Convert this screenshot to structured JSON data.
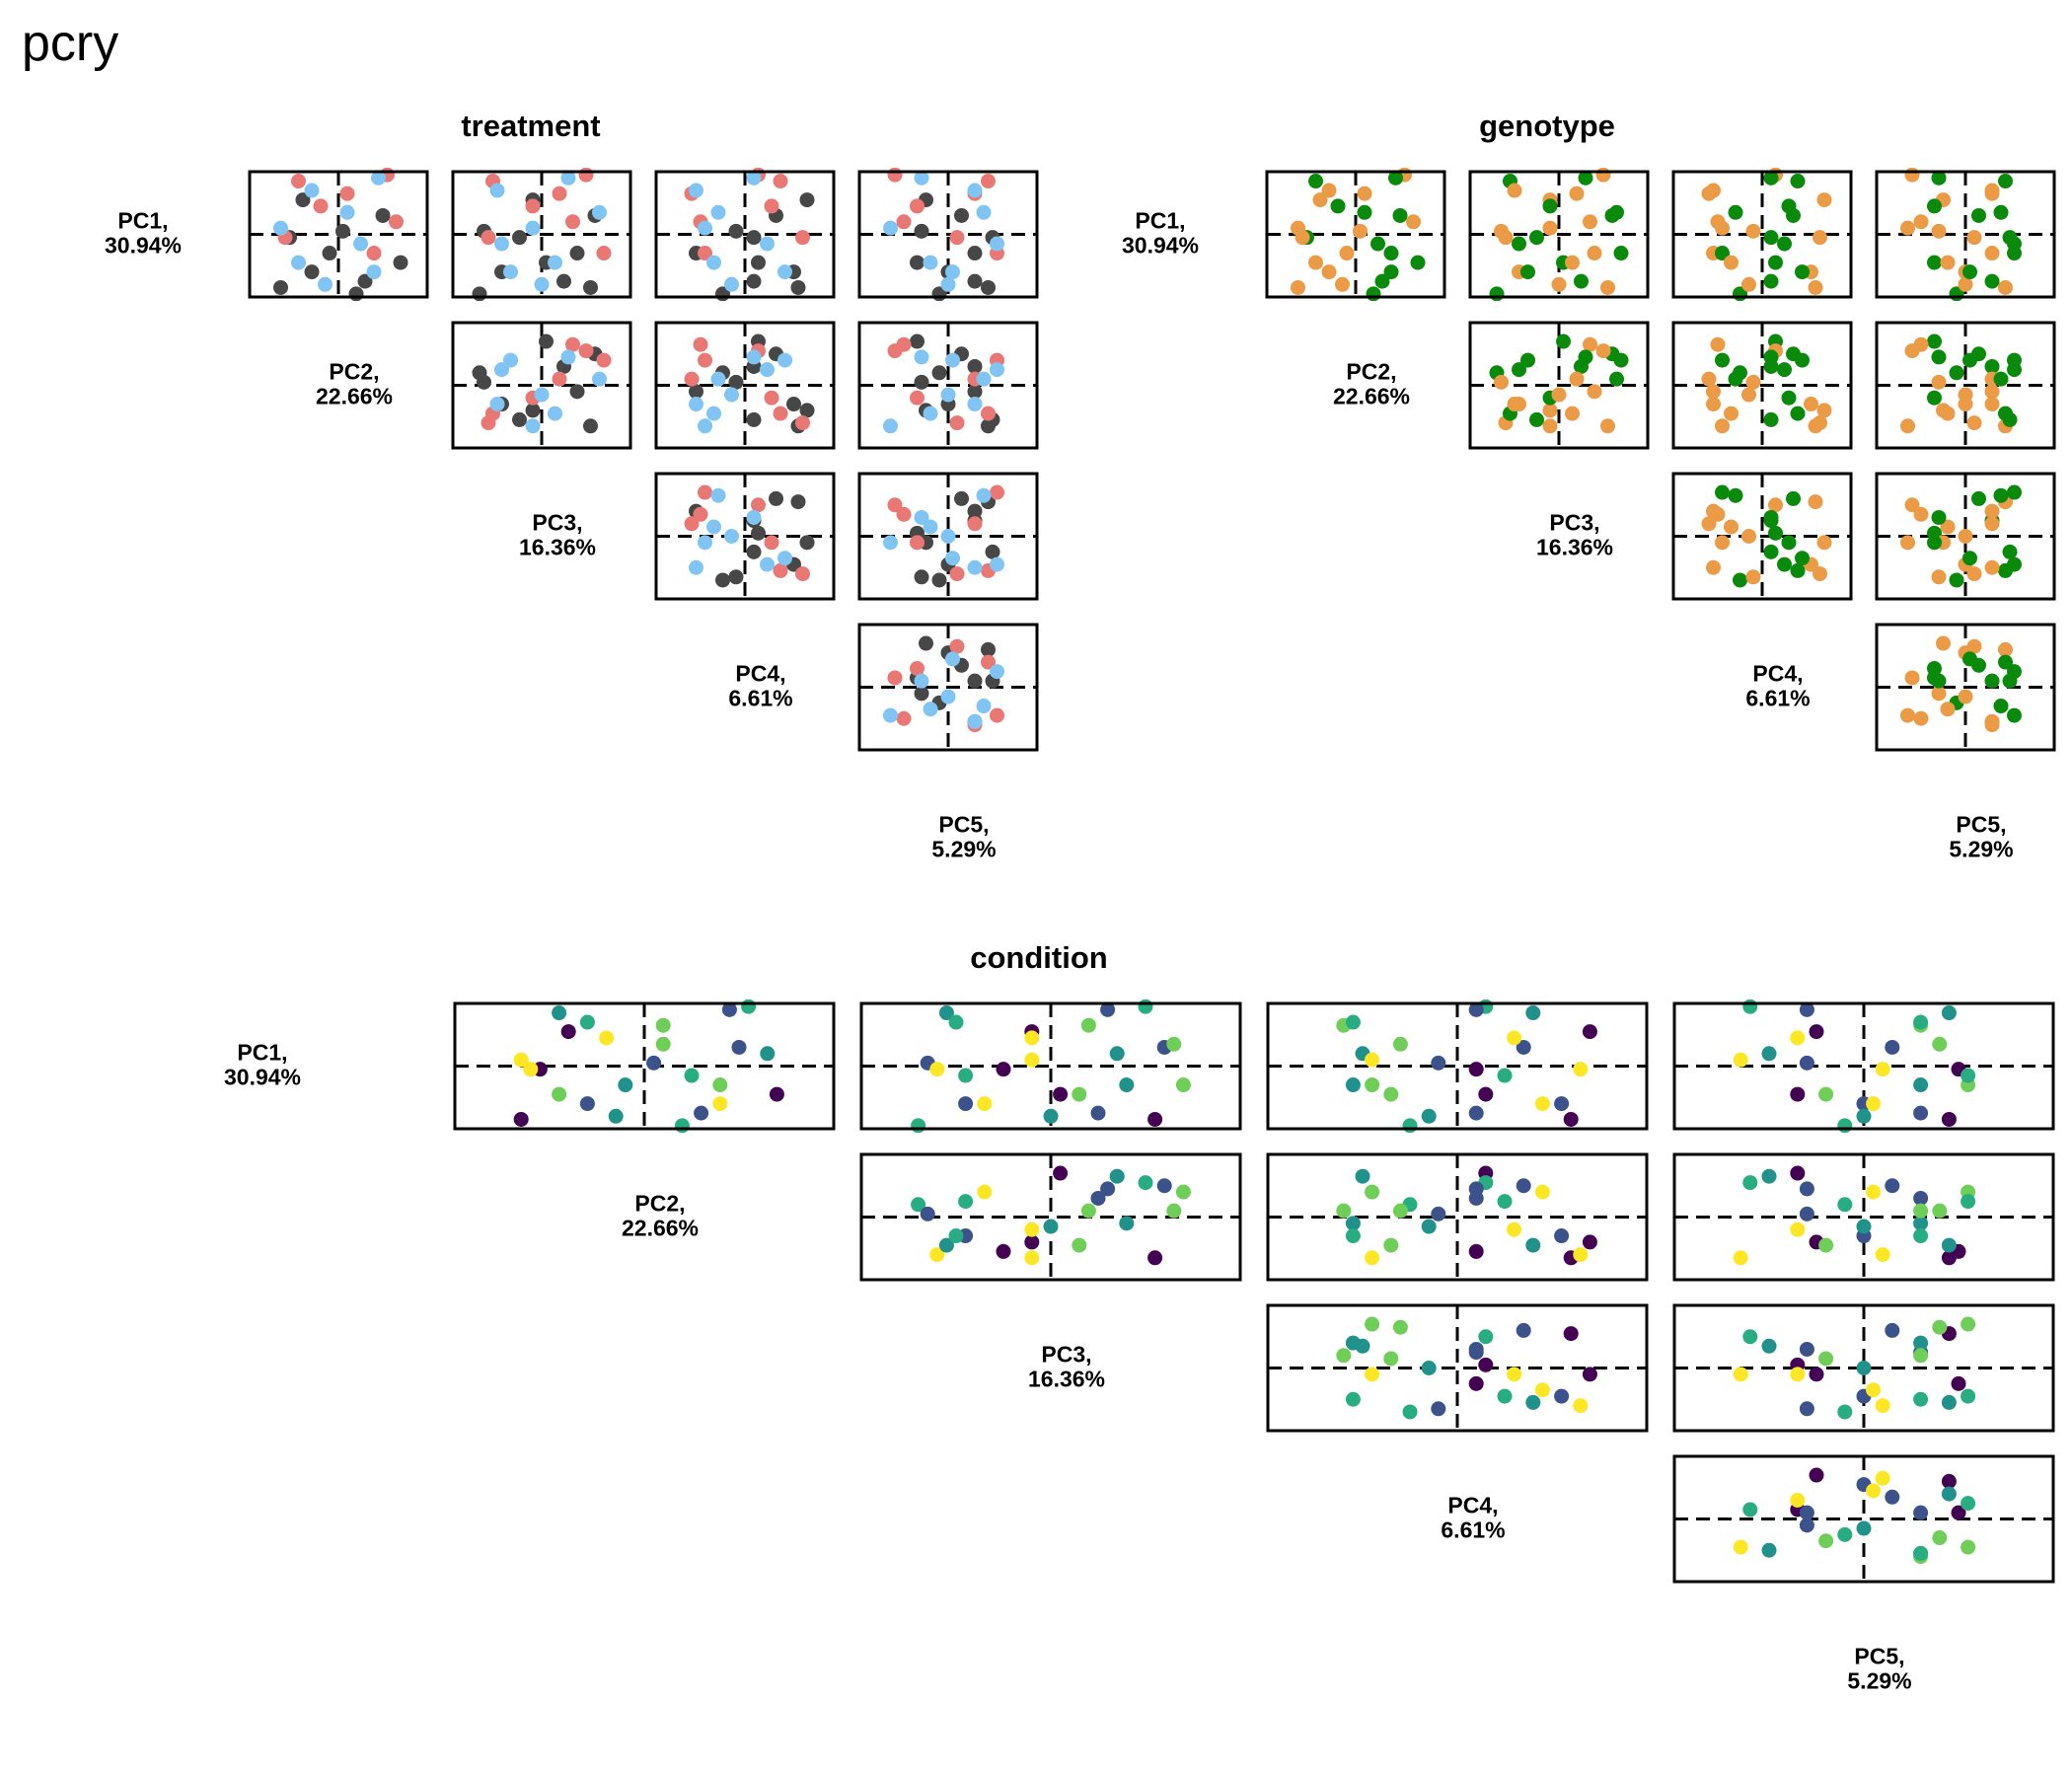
{
  "title": "pcry",
  "colors": {
    "treatment": {
      "A": "#e97773",
      "B": "#80c4f3",
      "C": "#474747"
    },
    "genotype": {
      "g1": "#0a8a0a",
      "g2": "#eb9a45"
    },
    "condition": [
      "#440154",
      "#3b528b",
      "#21918c",
      "#27ad81",
      "#6ece58",
      "#fde725"
    ]
  },
  "chart_data": {
    "type": "scatter",
    "components": [
      {
        "name": "PC1",
        "variance": "30.94%"
      },
      {
        "name": "PC2",
        "variance": "22.66%"
      },
      {
        "name": "PC3",
        "variance": "16.36%"
      },
      {
        "name": "PC4",
        "variance": "6.61%"
      },
      {
        "name": "PC5",
        "variance": "5.29%"
      }
    ],
    "groups": [
      "treatment",
      "genotype",
      "condition"
    ],
    "reference_lines": {
      "x": 0,
      "y": 0,
      "style": "dashed"
    },
    "samples": [
      {
        "scores": [
          -0.95,
          0.2,
          -0.7,
          -0.25,
          -0.1
        ],
        "treatment": "C",
        "genotype": "g1",
        "condition": 3
      },
      {
        "scores": [
          -0.85,
          -0.65,
          0.55,
          0.6,
          0.45
        ],
        "treatment": "C",
        "genotype": "g2",
        "condition": 0
      },
      {
        "scores": [
          -0.75,
          0.3,
          0.25,
          0.1,
          0.3
        ],
        "treatment": "C",
        "genotype": "g1",
        "condition": 1
      },
      {
        "scores": [
          -0.6,
          -0.3,
          -0.45,
          0.55,
          0.0
        ],
        "treatment": "C",
        "genotype": "g2",
        "condition": 1
      },
      {
        "scores": [
          -0.45,
          0.7,
          0.05,
          0.15,
          -0.35
        ],
        "treatment": "C",
        "genotype": "g1",
        "condition": 0
      },
      {
        "scores": [
          -0.3,
          -0.1,
          0.4,
          -0.55,
          0.3
        ],
        "treatment": "C",
        "genotype": "g2",
        "condition": 2
      },
      {
        "scores": [
          -0.05,
          -0.55,
          -0.25,
          0.1,
          0.5
        ],
        "treatment": "C",
        "genotype": "g1",
        "condition": 0
      },
      {
        "scores": [
          0.05,
          0.05,
          -0.65,
          -0.1,
          -0.3
        ],
        "treatment": "C",
        "genotype": "g2",
        "condition": 1
      },
      {
        "scores": [
          0.3,
          0.5,
          0.6,
          0.35,
          0.15
        ],
        "treatment": "C",
        "genotype": "g1",
        "condition": 1
      },
      {
        "scores": [
          0.55,
          -0.4,
          -0.1,
          0.7,
          -0.25
        ],
        "treatment": "C",
        "genotype": "g2",
        "condition": 0
      },
      {
        "scores": [
          -0.3,
          0.4,
          0.7,
          -0.45,
          0.55
        ],
        "treatment": "A",
        "genotype": "g1",
        "condition": 4
      },
      {
        "scores": [
          -0.05,
          -0.6,
          -0.6,
          0.65,
          0.1
        ],
        "treatment": "A",
        "genotype": "g2",
        "condition": 5
      },
      {
        "scores": [
          0.2,
          0.65,
          0.35,
          -0.5,
          -0.5
        ],
        "treatment": "A",
        "genotype": "g2",
        "condition": 2
      },
      {
        "scores": [
          0.45,
          -0.2,
          -0.1,
          0.3,
          -0.35
        ],
        "treatment": "A",
        "genotype": "g1",
        "condition": 5
      },
      {
        "scores": [
          0.65,
          0.1,
          0.2,
          -0.6,
          0.3
        ],
        "treatment": "A",
        "genotype": "g2",
        "condition": 4
      },
      {
        "scores": [
          0.85,
          -0.45,
          -0.55,
          0.4,
          0.45
        ],
        "treatment": "A",
        "genotype": "g1",
        "condition": 2
      },
      {
        "scores": [
          0.95,
          0.55,
          0.5,
          0.15,
          -0.6
        ],
        "treatment": "A",
        "genotype": "g2",
        "condition": 3
      },
      {
        "scores": [
          -0.8,
          -0.15,
          0.0,
          -0.15,
          0.0
        ],
        "treatment": "B",
        "genotype": "g2",
        "condition": 2
      },
      {
        "scores": [
          -0.6,
          0.4,
          -0.35,
          0.45,
          0.05
        ],
        "treatment": "B",
        "genotype": "g1",
        "condition": 5
      },
      {
        "scores": [
          -0.45,
          -0.45,
          0.15,
          -0.35,
          -0.2
        ],
        "treatment": "B",
        "genotype": "g2",
        "condition": 4
      },
      {
        "scores": [
          -0.15,
          0.25,
          -0.45,
          0.25,
          0.55
        ],
        "treatment": "B",
        "genotype": "g1",
        "condition": 3
      },
      {
        "scores": [
          0.1,
          -0.65,
          -0.1,
          -0.45,
          -0.65
        ],
        "treatment": "B",
        "genotype": "g2",
        "condition": 5
      },
      {
        "scores": [
          0.35,
          0.1,
          0.65,
          -0.3,
          0.4
        ],
        "treatment": "B",
        "genotype": "g1",
        "condition": 4
      },
      {
        "scores": [
          0.7,
          -0.3,
          -0.5,
          -0.55,
          0.3
        ],
        "treatment": "B",
        "genotype": "g2",
        "condition": 3
      },
      {
        "scores": [
          0.9,
          0.45,
          0.3,
          0.1,
          -0.3
        ],
        "treatment": "B",
        "genotype": "g1",
        "condition": 1
      }
    ]
  }
}
